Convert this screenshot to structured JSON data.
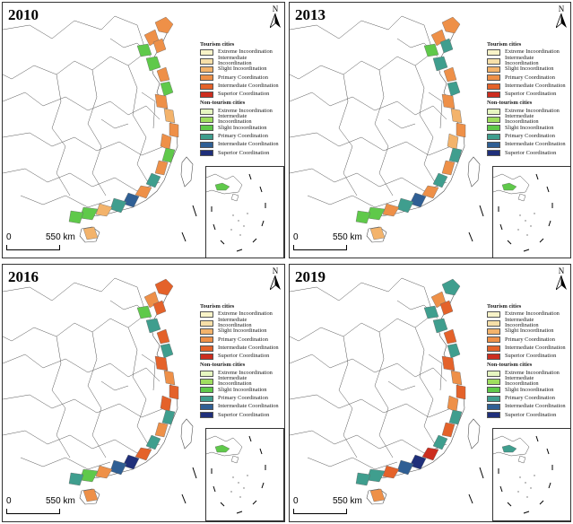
{
  "panels": [
    {
      "year": "2010"
    },
    {
      "year": "2013"
    },
    {
      "year": "2016"
    },
    {
      "year": "2019"
    }
  ],
  "north_label": "N",
  "scale": {
    "zero": "0",
    "distance": "550 km"
  },
  "legend": {
    "tourism_title": "Tourism cities",
    "non_tourism_title": "Non-tourism cities",
    "tourism_items": [
      {
        "label": "Extreme Incoordination",
        "color": "#f8f3c8"
      },
      {
        "label": "Intermediate Incoordination",
        "color": "#f6dfa8"
      },
      {
        "label": "Slight Incoordination",
        "color": "#f3b36b"
      },
      {
        "label": "Primary Coordination",
        "color": "#ee9048"
      },
      {
        "label": "Intermediate Coordination",
        "color": "#e4622a"
      },
      {
        "label": "Superior Coordination",
        "color": "#cc2d1f"
      }
    ],
    "non_tourism_items": [
      {
        "label": "Extreme Incoordination",
        "color": "#e6f6c0"
      },
      {
        "label": "Intermediate Incoordination",
        "color": "#9fde5f"
      },
      {
        "label": "Slight Incoordination",
        "color": "#5fc94a"
      },
      {
        "label": "Primary Coordination",
        "color": "#3f9e8e"
      },
      {
        "label": "Intermediate Coordination",
        "color": "#2f5f94"
      },
      {
        "label": "Superior Coordination",
        "color": "#1f2f7a"
      }
    ]
  }
}
